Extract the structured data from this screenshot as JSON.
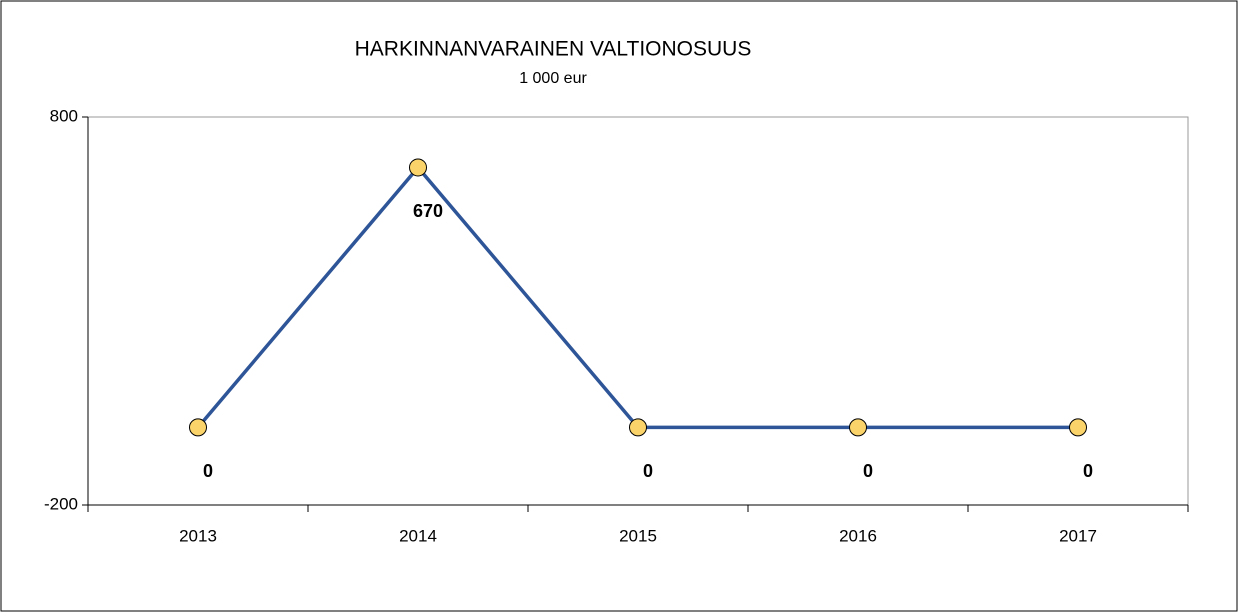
{
  "chart_data": {
    "type": "line",
    "title": "HARKINNANVARAINEN VALTIONOSUUS",
    "subtitle": "1 000 eur",
    "categories": [
      "2013",
      "2014",
      "2015",
      "2016",
      "2017"
    ],
    "series": [
      {
        "name": "Harkinnanvarainen valtionosuus",
        "color": "#2e5597",
        "marker_color": "#fad46b",
        "values": [
          0,
          670,
          0,
          0,
          0
        ]
      }
    ],
    "ylim": [
      -200,
      800
    ],
    "yticks": [
      -200,
      800
    ],
    "grid": false
  }
}
